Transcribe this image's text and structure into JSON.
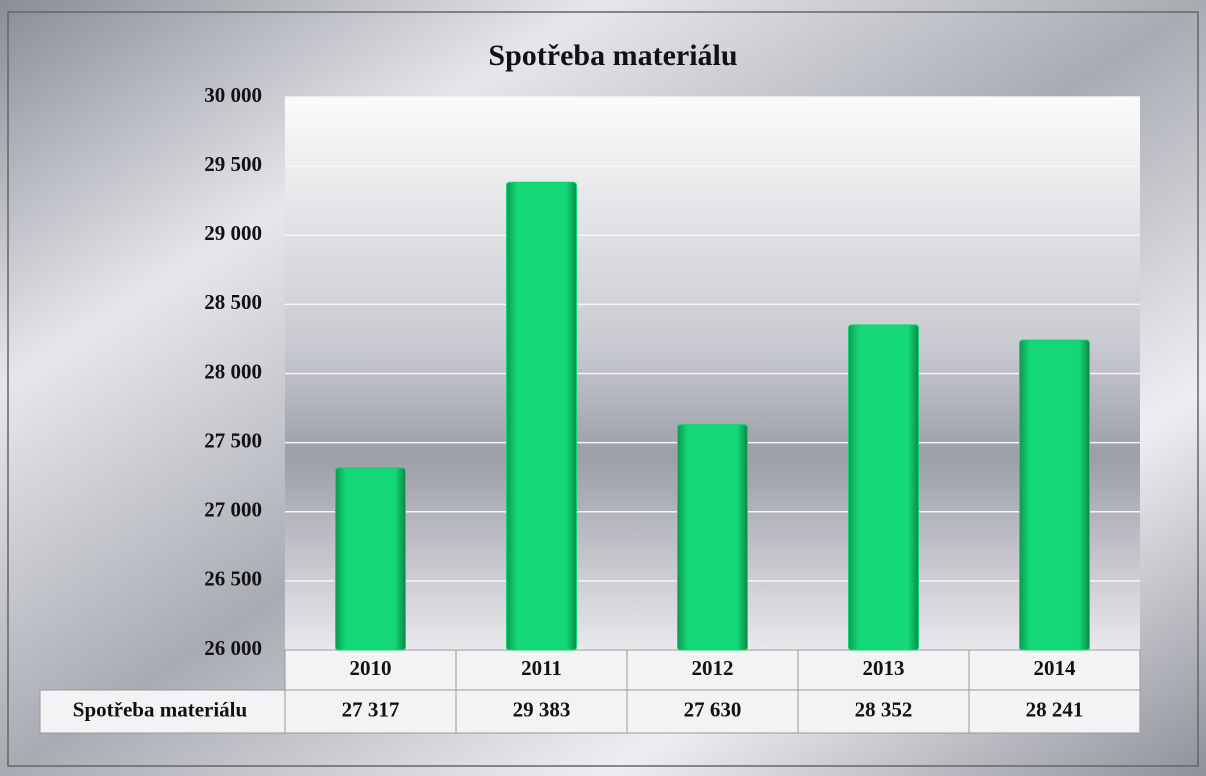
{
  "chart_data": {
    "type": "bar",
    "title": "Spotřeba materiálu",
    "categories": [
      "2010",
      "2011",
      "2012",
      "2013",
      "2014"
    ],
    "series": [
      {
        "name": "Spotřeba materiálu",
        "color": "#12d474",
        "values": [
          27317,
          29383,
          27630,
          28352,
          28241
        ],
        "value_labels": [
          "27 317",
          "29 383",
          "27 630",
          "28 352",
          "28 241"
        ]
      }
    ],
    "ylim": [
      26000,
      30000
    ],
    "yticks": [
      {
        "value": 26000,
        "label": "26 000"
      },
      {
        "value": 26500,
        "label": "26 500"
      },
      {
        "value": 27000,
        "label": "27 000"
      },
      {
        "value": 27500,
        "label": "27 500"
      },
      {
        "value": 28000,
        "label": "28 000"
      },
      {
        "value": 28500,
        "label": "28 500"
      },
      {
        "value": 29000,
        "label": "29 000"
      },
      {
        "value": 29500,
        "label": "29 500"
      },
      {
        "value": 30000,
        "label": "30 000"
      }
    ],
    "grid": true,
    "data_table": true
  }
}
